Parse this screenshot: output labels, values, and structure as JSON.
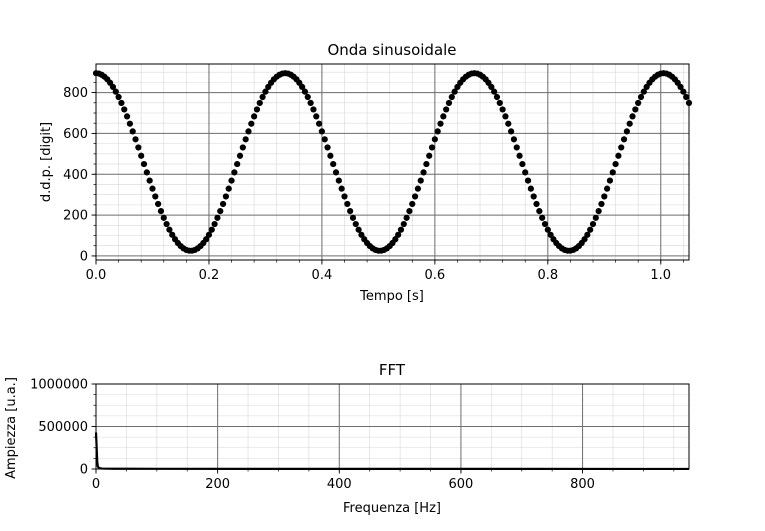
{
  "chart_data": [
    {
      "type": "scatter",
      "title": "Onda sinusoidale",
      "xlabel": "Tempo [s]",
      "ylabel": "d.d.p. [digit]",
      "xlim": [
        0.0,
        1.05
      ],
      "ylim": [
        -20,
        940
      ],
      "xticks": [
        "0.0",
        "0.2",
        "0.4",
        "0.6",
        "0.8",
        "1.0"
      ],
      "yticks": [
        "0",
        "200",
        "400",
        "600",
        "800"
      ],
      "grid": true,
      "series": [
        {
          "color": "#000000",
          "marker": "dot",
          "model": {
            "kind": "cosine",
            "offset": 460,
            "amplitude": 435,
            "period_s": 0.335,
            "phase_rad": 0.0,
            "t_start": 0.0,
            "t_end": 1.05,
            "sample_step_s": 0.005
          }
        }
      ]
    },
    {
      "type": "line",
      "title": "FFT",
      "xlabel": "Frequenza [Hz]",
      "ylabel": "Ampiezza [u.a.]",
      "xlim": [
        0,
        975
      ],
      "ylim": [
        0,
        1000000
      ],
      "xticks": [
        "0",
        "200",
        "400",
        "600",
        "800"
      ],
      "yticks": [
        "0",
        "500000",
        "1000000"
      ],
      "grid": true,
      "series": [
        {
          "color": "#000000",
          "points": [
            [
              0,
              430000
            ],
            [
              1,
              260000
            ],
            [
              2,
              90000
            ],
            [
              3,
              30000
            ],
            [
              5,
              10000
            ],
            [
              10,
              5000
            ],
            [
              30,
              3000
            ],
            [
              100,
              2000
            ],
            [
              300,
              1500
            ],
            [
              600,
              1200
            ],
            [
              975,
              1000
            ]
          ]
        }
      ]
    }
  ]
}
